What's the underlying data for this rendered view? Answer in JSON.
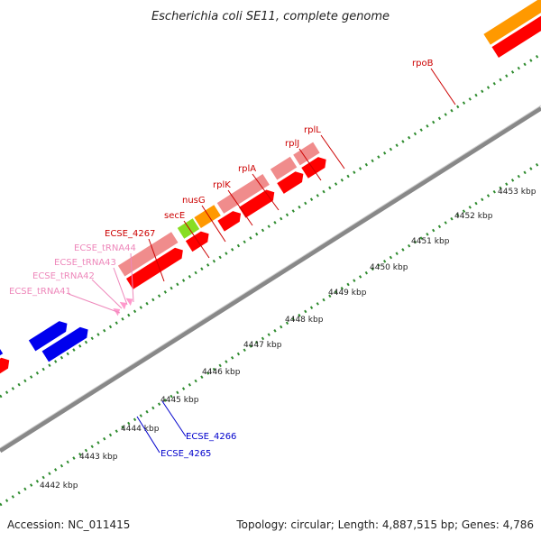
{
  "title": "Escherichia coli SE11, complete genome",
  "footer": {
    "accession": "Accession: NC_011415",
    "topology": "Topology: circular; Length: 4,887,515 bp; Genes: 4,786"
  },
  "colors": {
    "cds": "#ff0000",
    "cds_light": "#f08c8c",
    "rrna_orange": "#ff9900",
    "trna_pink": "#ff99cc",
    "reverse_blue": "#0000ee",
    "olive": "#6b8e23",
    "green": "#88dd22",
    "backbone": "#999999",
    "ticks": "#2e8b2e"
  },
  "scale_labels": [
    "4442 kbp",
    "4443 kbp",
    "4444 kbp",
    "4445 kbp",
    "4446 kbp",
    "4447 kbp",
    "4448 kbp",
    "4449 kbp",
    "4450 kbp",
    "4451 kbp",
    "4452 kbp",
    "4453 kbp"
  ],
  "gene_labels": [
    {
      "text": "rpoB",
      "color": "#cc0000"
    },
    {
      "text": "rplL",
      "color": "#cc0000"
    },
    {
      "text": "rplJ",
      "color": "#cc0000"
    },
    {
      "text": "rplA",
      "color": "#cc0000"
    },
    {
      "text": "rplK",
      "color": "#cc0000"
    },
    {
      "text": "nusG",
      "color": "#cc0000"
    },
    {
      "text": "secE",
      "color": "#cc0000"
    },
    {
      "text": "ECSE_4267",
      "color": "#cc0000"
    },
    {
      "text": "ECSE_tRNA44",
      "color": "#ee88bb"
    },
    {
      "text": "ECSE_tRNA43",
      "color": "#ee88bb"
    },
    {
      "text": "ECSE_tRNA42",
      "color": "#ee88bb"
    },
    {
      "text": "ECSE_tRNA41",
      "color": "#ee88bb"
    },
    {
      "text": "ECSE_4266",
      "color": "#0000cc"
    },
    {
      "text": "ECSE_4265",
      "color": "#0000cc"
    }
  ]
}
